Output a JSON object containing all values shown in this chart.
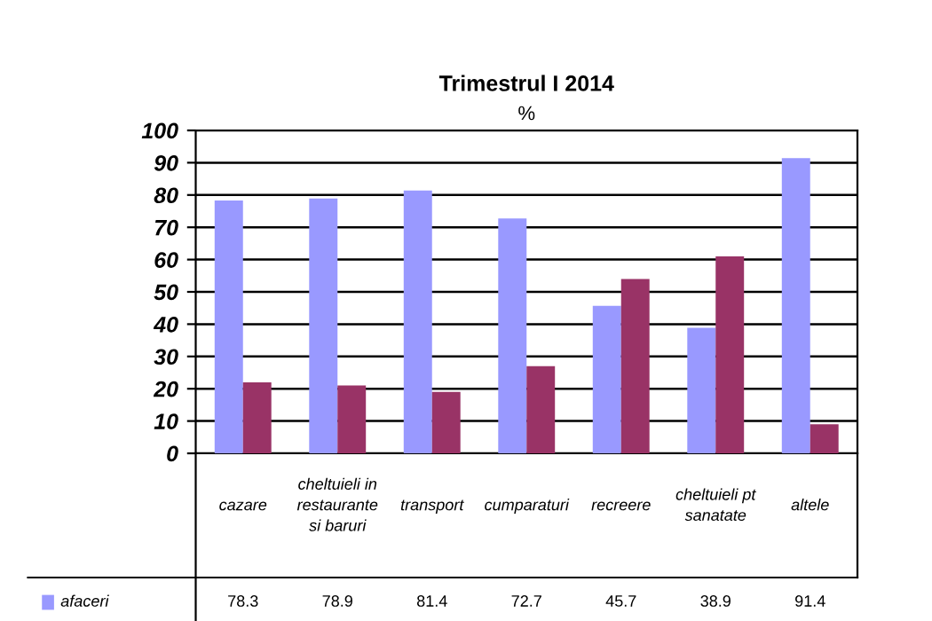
{
  "chart_data": {
    "type": "bar",
    "title": "Trimestrul I 2014",
    "subtitle": "%",
    "categories": [
      "cazare",
      "cheltuieli in restaurante si baruri",
      "transport",
      "cumparaturi",
      "recreere",
      "cheltuieli pt sanatate",
      "altele"
    ],
    "series": [
      {
        "name": "afaceri",
        "color": "#9999ff",
        "values": [
          78.3,
          78.9,
          81.4,
          72.7,
          45.7,
          38.9,
          91.4
        ],
        "value_labels": [
          "78.3",
          "78.9",
          "81.4",
          "72.7",
          "45.7",
          "38.9",
          "91.4"
        ]
      },
      {
        "color": "#993366",
        "values": [
          22,
          21,
          19,
          27,
          54,
          61,
          9
        ]
      }
    ],
    "ylim": [
      0,
      100
    ],
    "yticks": [
      0,
      10,
      20,
      30,
      40,
      50,
      60,
      70,
      80,
      90,
      100
    ],
    "grid": "y"
  }
}
